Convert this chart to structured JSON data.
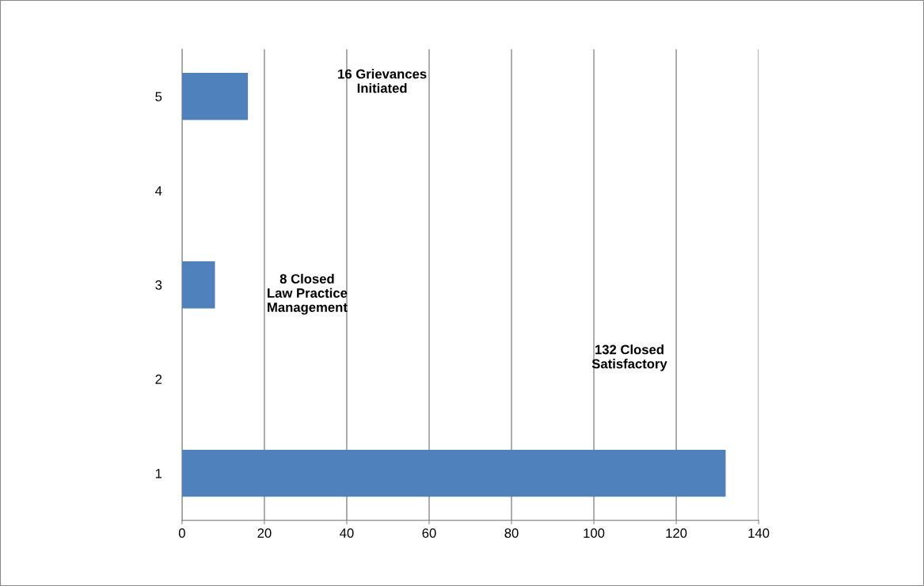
{
  "chart_data": {
    "type": "bar",
    "orientation": "horizontal",
    "categories": [
      "5",
      "4",
      "3",
      "2",
      "1"
    ],
    "values": [
      16,
      null,
      8,
      null,
      132
    ],
    "color": "#4f81bd",
    "xlim": [
      0,
      140
    ],
    "xticks": [
      0,
      20,
      40,
      60,
      80,
      100,
      120,
      140
    ],
    "grid": "x",
    "legend": false,
    "annotations": [
      "16 Grievances\nInitiated",
      "8 Closed\nLaw Practice\nManagement",
      "132 Closed\nSatisfactory"
    ]
  }
}
